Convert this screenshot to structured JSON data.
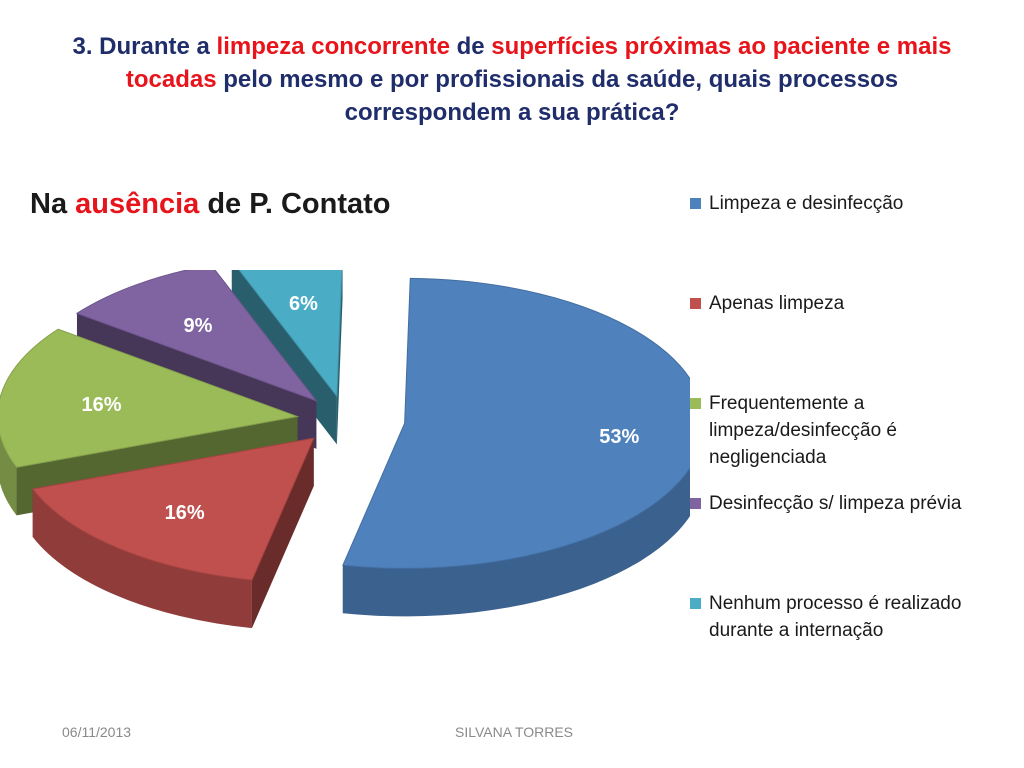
{
  "slide": {
    "title_parts": [
      {
        "text": "3. Durante a ",
        "hl": false
      },
      {
        "text": "limpeza concorrente",
        "hl": true
      },
      {
        "text": " de ",
        "hl": false
      },
      {
        "text": "superfícies próximas ao paciente e mais tocadas",
        "hl": true
      },
      {
        "text": " pelo mesmo e por profissionais da saúde, quais processos correspondem a sua prática?",
        "hl": false
      }
    ],
    "colors": {
      "title_text": "#1f2d6b",
      "highlight": "#e8141b"
    }
  },
  "chart_title": {
    "part1": "Na ",
    "highlight": "ausência",
    "part2": " de P. Contato"
  },
  "chart_data": {
    "type": "pie",
    "style": "3d-exploded",
    "slices": [
      {
        "label": "Limpeza e desinfecção",
        "value": 53,
        "value_label": "53%",
        "color": "#4f81bd"
      },
      {
        "label": "Apenas limpeza",
        "value": 16,
        "value_label": "16%",
        "color": "#c0504d"
      },
      {
        "label": "Frequentemente a limpeza/desinfecção é negligenciada",
        "value": 16,
        "value_label": "16%",
        "color": "#9bbb59"
      },
      {
        "label": "Desinfecção s/ limpeza prévia",
        "value": 9,
        "value_label": "9%",
        "color": "#8064a2"
      },
      {
        "label": "Nenhum processo é realizado durante a internação",
        "value": 6,
        "value_label": "6%",
        "color": "#4bacc6"
      }
    ],
    "legend": {
      "position": "right",
      "entries": [
        {
          "line1": "Limpeza e desinfecção",
          "line2": "",
          "line3": ""
        },
        {
          "line1": "Apenas limpeza",
          "line2": "",
          "line3": ""
        },
        {
          "line1": "Frequentemente a",
          "line2": "limpeza/desinfecção é",
          "line3": "negligenciada"
        },
        {
          "line1": "Desinfecção s/ limpeza prévia",
          "line2": "",
          "line3": ""
        },
        {
          "line1": "Nenhum processo é realizado",
          "line2": "durante a internação",
          "line3": ""
        }
      ]
    }
  },
  "footer": {
    "date": "06/11/2013",
    "author": "SILVANA TORRES"
  }
}
